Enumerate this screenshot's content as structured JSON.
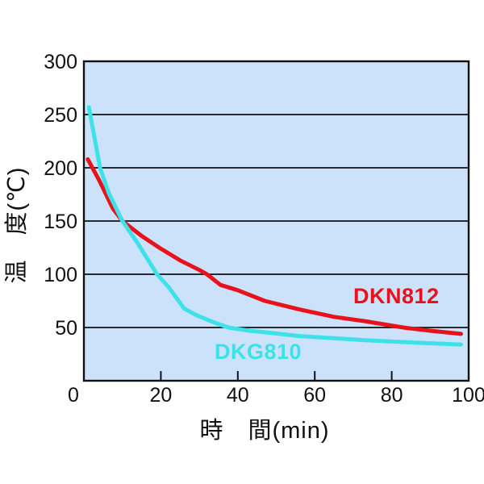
{
  "chart_data": {
    "type": "line",
    "title": "",
    "xlabel": "時　間(min)",
    "ylabel": "温　度(℃)",
    "xlim": [
      0,
      100
    ],
    "ylim": [
      0,
      300
    ],
    "x_ticks": [
      0,
      20,
      40,
      60,
      80,
      100
    ],
    "y_ticks": [
      50,
      100,
      150,
      200,
      250,
      300
    ],
    "grid": "horizontal-gridlines",
    "legend_position": "labels-next-to-curves",
    "plot_bg_color": "#cce2fa",
    "axis_color": "#111111",
    "series": [
      {
        "name": "DKN812",
        "color": "#e8121c",
        "points": [
          [
            1,
            208
          ],
          [
            4,
            188
          ],
          [
            7.5,
            162
          ],
          [
            10,
            150
          ],
          [
            15,
            136
          ],
          [
            20,
            124
          ],
          [
            25,
            113
          ],
          [
            30,
            104
          ],
          [
            32,
            100
          ],
          [
            35.5,
            90
          ],
          [
            40,
            85
          ],
          [
            47,
            75
          ],
          [
            56,
            67
          ],
          [
            65,
            60
          ],
          [
            73,
            56
          ],
          [
            83,
            50
          ],
          [
            90,
            47
          ],
          [
            98,
            44
          ]
        ]
      },
      {
        "name": "DKG810",
        "color": "#3ce2e8",
        "points": [
          [
            1.3,
            257
          ],
          [
            4.2,
            200
          ],
          [
            6.5,
            176
          ],
          [
            10,
            150
          ],
          [
            14,
            129
          ],
          [
            19,
            100
          ],
          [
            22,
            88
          ],
          [
            24,
            78
          ],
          [
            26,
            68
          ],
          [
            29,
            62
          ],
          [
            33,
            56
          ],
          [
            37.5,
            50
          ],
          [
            43,
            47
          ],
          [
            47,
            45.5
          ],
          [
            56,
            42
          ],
          [
            65,
            40
          ],
          [
            73,
            38
          ],
          [
            85,
            36
          ],
          [
            98,
            34
          ]
        ]
      }
    ]
  }
}
